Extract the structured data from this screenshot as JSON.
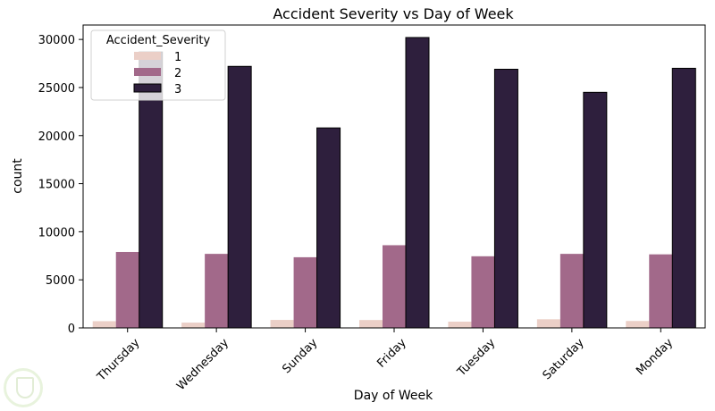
{
  "chart_data": {
    "type": "bar",
    "title": "Accident Severity vs Day of Week",
    "xlabel": "Day of Week",
    "ylabel": "count",
    "ylim": [
      0,
      31500
    ],
    "yticks": [
      0,
      5000,
      10000,
      15000,
      20000,
      25000,
      30000
    ],
    "ytick_labels": [
      "0",
      "5000",
      "10000",
      "15000",
      "20000",
      "25000",
      "30000"
    ],
    "categories": [
      "Thursday",
      "Wednesday",
      "Sunday",
      "Friday",
      "Tuesday",
      "Saturday",
      "Monday"
    ],
    "legend": {
      "title": "Accident_Severity",
      "placement": "top-left"
    },
    "grid": false,
    "series": [
      {
        "name": "1",
        "color": "#ebcfc7",
        "values": [
          700,
          550,
          830,
          820,
          650,
          900,
          720
        ]
      },
      {
        "name": "2",
        "color": "#a2698a",
        "values": [
          7900,
          7700,
          7350,
          8600,
          7450,
          7700,
          7650
        ]
      },
      {
        "name": "3",
        "color": "#2e1f3d",
        "values": [
          28700,
          27200,
          20800,
          30200,
          26900,
          24500,
          27000
        ]
      }
    ]
  },
  "watermark": {
    "icon": "shield-logo-icon"
  }
}
